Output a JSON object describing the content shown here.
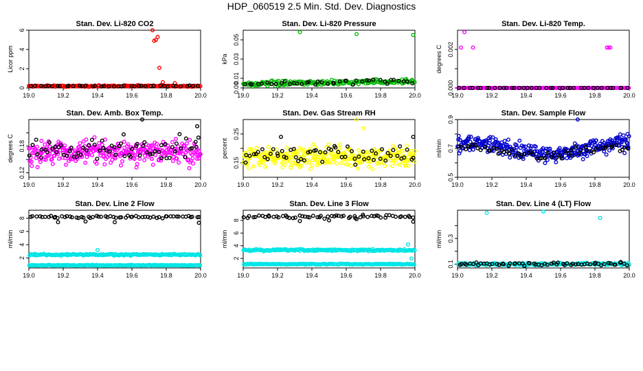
{
  "figure": {
    "title": "HDP_060519  2.5 Min. Std. Dev. Diagnostics"
  },
  "chart_data": [
    {
      "type": "scatter",
      "title": "Stan. Dev. Li-820 CO2",
      "xlabel": "",
      "ylabel": "Licor ppm",
      "xlim": [
        19.0,
        20.0
      ],
      "ylim": [
        0.0,
        6.0
      ],
      "xticks": [
        19.0,
        19.2,
        19.4,
        19.6,
        19.8,
        20.0
      ],
      "yticks": [
        0,
        2,
        4,
        6
      ],
      "series": [
        {
          "name": "series-1",
          "color": "#ff0000",
          "base": 0.2,
          "noise": 0.06,
          "count": 190,
          "outliers": [
            [
              19.72,
              6.0
            ],
            [
              19.73,
              4.9
            ],
            [
              19.74,
              5.0
            ],
            [
              19.75,
              5.3
            ],
            [
              19.76,
              2.1
            ],
            [
              19.78,
              0.6
            ],
            [
              19.85,
              0.5
            ]
          ]
        },
        {
          "name": "series-2",
          "color": "#000000",
          "base": 0.2,
          "noise": 0.05,
          "count": 40,
          "outliers": []
        }
      ]
    },
    {
      "type": "scatter",
      "title": "Stan. Dev. Li-820 Pressure",
      "xlabel": "",
      "ylabel": "kPa",
      "xlim": [
        19.0,
        20.0
      ],
      "ylim": [
        0.0,
        0.06
      ],
      "xticks": [
        19.0,
        19.2,
        19.4,
        19.6,
        19.8,
        20.0
      ],
      "yticks": [
        0.0,
        0.01,
        0.03,
        0.05
      ],
      "ytick_labels": [
        "0.00",
        "0.01",
        "0.03",
        "0.05"
      ],
      "series": [
        {
          "name": "series-1",
          "color": "#00bb00",
          "base": 0.004,
          "noise": 0.002,
          "trend": 0.003,
          "count": 190,
          "outliers": [
            [
              19.33,
              0.058
            ],
            [
              19.66,
              0.056
            ],
            [
              19.99,
              0.055
            ]
          ]
        },
        {
          "name": "series-2",
          "color": "#000000",
          "base": 0.004,
          "noise": 0.002,
          "trend": 0.003,
          "count": 40,
          "outliers": []
        }
      ]
    },
    {
      "type": "scatter",
      "title": "Stan. Dev. Li-820 Temp.",
      "xlabel": "",
      "ylabel": "degrees C",
      "xlim": [
        19.0,
        20.0
      ],
      "ylim": [
        0.0,
        0.003
      ],
      "xticks": [
        19.0,
        19.2,
        19.4,
        19.6,
        19.8,
        20.0
      ],
      "yticks": [
        0.0,
        0.001,
        0.002
      ],
      "ytick_labels": [
        "0.000",
        "",
        "0.002"
      ],
      "series": [
        {
          "name": "series-1",
          "color": "#ff00ff",
          "base": 0.0,
          "noise": 0.0,
          "count": 150,
          "outliers": [
            [
              19.04,
              0.0029
            ],
            [
              19.02,
              0.0021
            ],
            [
              19.09,
              0.0021
            ],
            [
              19.87,
              0.0021
            ],
            [
              19.88,
              0.0021
            ],
            [
              19.89,
              0.0021
            ]
          ]
        },
        {
          "name": "series-2",
          "color": "#000000",
          "base": 0.0,
          "noise": 0.0,
          "count": 40,
          "outliers": []
        }
      ]
    },
    {
      "type": "scatter",
      "title": "Stan. Dev. Amb. Box Temp.",
      "xlabel": "",
      "ylabel": "degrees C",
      "xlim": [
        19.0,
        20.0
      ],
      "ylim": [
        0.11,
        0.24
      ],
      "xticks": [
        19.0,
        19.2,
        19.4,
        19.6,
        19.8,
        20.0
      ],
      "yticks": [
        0.12,
        0.15,
        0.18,
        0.21
      ],
      "ytick_labels": [
        "0.12",
        "",
        "0.18",
        ""
      ],
      "series": [
        {
          "name": "series-1",
          "color": "#ff00ff",
          "base": 0.165,
          "noise": 0.022,
          "count": 320,
          "outliers": []
        },
        {
          "name": "series-2",
          "color": "#000000",
          "base": 0.175,
          "noise": 0.025,
          "count": 70,
          "outliers": [
            [
              19.66,
              0.24
            ],
            [
              19.98,
              0.225
            ]
          ]
        }
      ]
    },
    {
      "type": "scatter",
      "title": "Stan. Dev. Gas Stream RH",
      "xlabel": "",
      "ylabel": "percent",
      "xlim": [
        19.0,
        20.0
      ],
      "ylim": [
        0.1,
        0.3
      ],
      "xticks": [
        19.0,
        19.2,
        19.4,
        19.6,
        19.8,
        20.0
      ],
      "yticks": [
        0.15,
        0.2,
        0.25
      ],
      "ytick_labels": [
        "0.15",
        "",
        "0.25"
      ],
      "series": [
        {
          "name": "series-1",
          "color": "#ffff00",
          "base": 0.17,
          "noise": 0.028,
          "count": 320,
          "outliers": [
            [
              19.66,
              0.3
            ],
            [
              19.7,
              0.27
            ]
          ]
        },
        {
          "name": "series-2",
          "color": "#000000",
          "base": 0.18,
          "noise": 0.025,
          "count": 60,
          "outliers": [
            [
              19.22,
              0.24
            ],
            [
              19.99,
              0.24
            ]
          ]
        }
      ]
    },
    {
      "type": "scatter",
      "title": "Stan. Dev. Sample Flow",
      "xlabel": "",
      "ylabel": "ml/min",
      "xlim": [
        19.0,
        20.0
      ],
      "ylim": [
        0.5,
        0.9
      ],
      "xticks": [
        19.0,
        19.2,
        19.4,
        19.6,
        19.8,
        20.0
      ],
      "yticks": [
        0.5,
        0.6,
        0.7,
        0.8,
        0.9
      ],
      "ytick_labels": [
        "0.5",
        "",
        "0.7",
        "",
        "0.9"
      ],
      "series": [
        {
          "name": "series-1",
          "color": "#0000cc",
          "base": 0.7,
          "noise": 0.045,
          "wave": 0.04,
          "count": 320,
          "outliers": [
            [
              19.7,
              0.9
            ],
            [
              19.99,
              0.8
            ]
          ]
        },
        {
          "name": "series-2",
          "color": "#000000",
          "base": 0.68,
          "noise": 0.03,
          "wave": 0.03,
          "count": 60,
          "outliers": []
        }
      ]
    },
    {
      "type": "scatter",
      "title": "Stan. Dev. Line 2 Flow",
      "xlabel": "",
      "ylabel": "ml/min",
      "xlim": [
        19.0,
        20.0
      ],
      "ylim": [
        0.5,
        9.2
      ],
      "xticks": [
        19.0,
        19.2,
        19.4,
        19.6,
        19.8,
        20.0
      ],
      "yticks": [
        2,
        4,
        6,
        8
      ],
      "series": [
        {
          "name": "series-1",
          "color": "#00e5e5",
          "base": 2.5,
          "noise": 0.1,
          "count": 200,
          "outliers": [
            [
              19.4,
              3.2
            ]
          ]
        },
        {
          "name": "series-2",
          "color": "#00e5e5",
          "base": 0.9,
          "noise": 0.05,
          "count": 200,
          "outliers": []
        },
        {
          "name": "series-3",
          "color": "#000000",
          "base": 8.2,
          "noise": 0.15,
          "count": 60,
          "outliers": [
            [
              19.17,
              7.4
            ],
            [
              19.33,
              7.5
            ],
            [
              19.5,
              7.4
            ],
            [
              19.99,
              7.3
            ]
          ]
        }
      ]
    },
    {
      "type": "scatter",
      "title": "Stan. Dev. Line 3 Flow",
      "xlabel": "",
      "ylabel": "ml/min",
      "xlim": [
        19.0,
        20.0
      ],
      "ylim": [
        0.5,
        9.6
      ],
      "xticks": [
        19.0,
        19.2,
        19.4,
        19.6,
        19.8,
        20.0
      ],
      "yticks": [
        2,
        4,
        6,
        8
      ],
      "series": [
        {
          "name": "series-1",
          "color": "#00e5e5",
          "base": 3.3,
          "noise": 0.12,
          "count": 200,
          "outliers": [
            [
              19.96,
              4.2
            ],
            [
              19.98,
              2.0
            ]
          ]
        },
        {
          "name": "series-2",
          "color": "#00e5e5",
          "base": 1.1,
          "noise": 0.06,
          "count": 200,
          "outliers": []
        },
        {
          "name": "series-3",
          "color": "#000000",
          "base": 8.6,
          "noise": 0.2,
          "count": 60,
          "outliers": [
            [
              19.33,
              7.9
            ],
            [
              19.5,
              8.0
            ],
            [
              19.66,
              8.2
            ],
            [
              19.99,
              7.8
            ]
          ]
        }
      ]
    },
    {
      "type": "scatter",
      "title": "Stan. Dev. Line 4 (LT) Flow",
      "xlabel": "",
      "ylabel": "ml/min",
      "xlim": [
        19.0,
        20.0
      ],
      "ylim": [
        0.07,
        0.52
      ],
      "xticks": [
        19.0,
        19.2,
        19.4,
        19.6,
        19.8,
        20.0
      ],
      "yticks": [
        0.1,
        0.2,
        0.3,
        0.4
      ],
      "ytick_labels": [
        "0.1",
        "",
        "0.3",
        ""
      ],
      "series": [
        {
          "name": "series-1",
          "color": "#00e5e5",
          "base": 0.1,
          "noise": 0.008,
          "count": 200,
          "outliers": [
            [
              19.17,
              0.5
            ],
            [
              19.5,
              0.51
            ],
            [
              19.83,
              0.46
            ]
          ]
        },
        {
          "name": "series-2",
          "color": "#000000",
          "base": 0.1,
          "noise": 0.01,
          "count": 60,
          "outliers": []
        }
      ]
    }
  ]
}
